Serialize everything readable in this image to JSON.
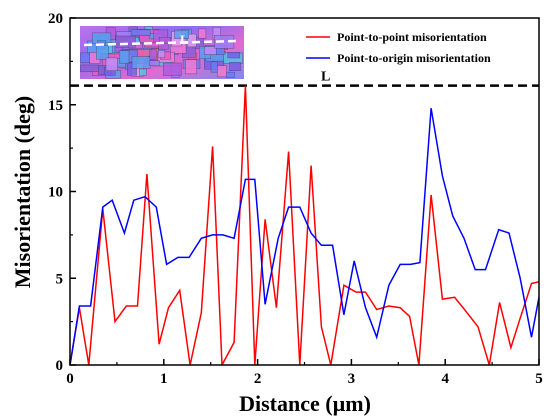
{
  "chart_data": {
    "type": "line",
    "xlabel": "Distance (µm)",
    "ylabel": "Misorientation (deg)",
    "xlim": [
      0,
      5
    ],
    "ylim": [
      0,
      20
    ],
    "xticks": [
      0,
      1,
      2,
      3,
      4,
      5
    ],
    "yticks": [
      0,
      5,
      10,
      15,
      20
    ],
    "legend_position": "top-right",
    "series": [
      {
        "name": "Point-to-point misorientation",
        "color": "#ff0000",
        "points": [
          [
            0.0,
            0.0
          ],
          [
            0.1,
            3.3
          ],
          [
            0.2,
            0.0
          ],
          [
            0.35,
            9.0
          ],
          [
            0.48,
            2.5
          ],
          [
            0.6,
            3.4
          ],
          [
            0.72,
            3.4
          ],
          [
            0.82,
            11.0
          ],
          [
            0.95,
            1.2
          ],
          [
            1.05,
            3.3
          ],
          [
            1.17,
            4.3
          ],
          [
            1.28,
            0.0
          ],
          [
            1.4,
            3.0
          ],
          [
            1.52,
            12.6
          ],
          [
            1.62,
            0.0
          ],
          [
            1.75,
            1.3
          ],
          [
            1.87,
            16.1
          ],
          [
            1.97,
            0.0
          ],
          [
            2.08,
            8.4
          ],
          [
            2.2,
            3.3
          ],
          [
            2.33,
            12.3
          ],
          [
            2.45,
            0.0
          ],
          [
            2.57,
            11.5
          ],
          [
            2.68,
            2.2
          ],
          [
            2.78,
            0.0
          ],
          [
            2.92,
            4.6
          ],
          [
            3.05,
            4.2
          ],
          [
            3.15,
            4.2
          ],
          [
            3.27,
            3.2
          ],
          [
            3.4,
            3.4
          ],
          [
            3.52,
            3.3
          ],
          [
            3.62,
            2.8
          ],
          [
            3.72,
            0.0
          ],
          [
            3.85,
            9.8
          ],
          [
            3.97,
            3.8
          ],
          [
            4.1,
            3.9
          ],
          [
            4.22,
            3.1
          ],
          [
            4.35,
            2.2
          ],
          [
            4.47,
            0.0
          ],
          [
            4.58,
            3.6
          ],
          [
            4.7,
            1.0
          ],
          [
            4.8,
            2.7
          ],
          [
            4.92,
            4.7
          ],
          [
            5.0,
            4.8
          ]
        ]
      },
      {
        "name": "Point-to-origin misorientation",
        "color": "#0000ff",
        "points": [
          [
            0.0,
            0.0
          ],
          [
            0.1,
            3.4
          ],
          [
            0.22,
            3.4
          ],
          [
            0.35,
            9.1
          ],
          [
            0.45,
            9.5
          ],
          [
            0.58,
            7.6
          ],
          [
            0.68,
            9.5
          ],
          [
            0.8,
            9.7
          ],
          [
            0.92,
            9.1
          ],
          [
            1.03,
            5.8
          ],
          [
            1.15,
            6.2
          ],
          [
            1.27,
            6.2
          ],
          [
            1.4,
            7.3
          ],
          [
            1.52,
            7.5
          ],
          [
            1.63,
            7.5
          ],
          [
            1.75,
            7.3
          ],
          [
            1.87,
            10.7
          ],
          [
            1.97,
            10.7
          ],
          [
            2.08,
            3.5
          ],
          [
            2.22,
            7.3
          ],
          [
            2.33,
            9.1
          ],
          [
            2.45,
            9.1
          ],
          [
            2.57,
            7.6
          ],
          [
            2.68,
            6.9
          ],
          [
            2.8,
            6.9
          ],
          [
            2.92,
            2.9
          ],
          [
            3.03,
            6.0
          ],
          [
            3.15,
            3.3
          ],
          [
            3.27,
            1.6
          ],
          [
            3.4,
            4.6
          ],
          [
            3.52,
            5.8
          ],
          [
            3.63,
            5.8
          ],
          [
            3.73,
            5.9
          ],
          [
            3.85,
            14.8
          ],
          [
            3.97,
            10.9
          ],
          [
            4.08,
            8.6
          ],
          [
            4.2,
            7.3
          ],
          [
            4.32,
            5.5
          ],
          [
            4.43,
            5.5
          ],
          [
            4.57,
            7.8
          ],
          [
            4.68,
            7.6
          ],
          [
            4.8,
            5.0
          ],
          [
            4.92,
            1.6
          ],
          [
            5.0,
            3.9
          ]
        ]
      }
    ],
    "reference_line": {
      "y": 16.1,
      "label": "L",
      "style": "dashed",
      "color": "#000000"
    },
    "inset": {
      "label": "L"
    }
  }
}
